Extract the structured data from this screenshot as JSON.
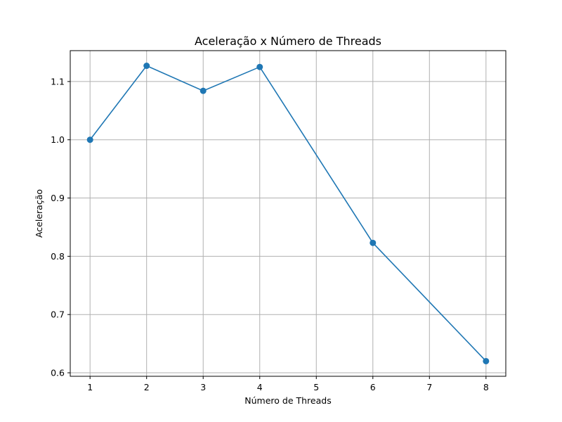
{
  "chart_data": {
    "type": "line",
    "title": "Aceleração x Número de Threads",
    "xlabel": "Número de Threads",
    "ylabel": "Aceleração",
    "xlim": [
      0.65,
      8.35
    ],
    "ylim": [
      0.594,
      1.153
    ],
    "x_ticks": [
      1,
      2,
      3,
      4,
      5,
      6,
      7,
      8
    ],
    "y_ticks": [
      0.6,
      0.7,
      0.8,
      0.9,
      1.0,
      1.1
    ],
    "y_tick_labels": [
      "0.6",
      "0.7",
      "0.8",
      "0.9",
      "1.0",
      "1.1"
    ],
    "grid": true,
    "legend": "none",
    "series": [
      {
        "color": "#1f77b4",
        "marker": "circle",
        "x": [
          1,
          2,
          3,
          4,
          6,
          8
        ],
        "y": [
          1.0,
          1.127,
          1.084,
          1.125,
          0.823,
          0.62
        ]
      }
    ]
  }
}
